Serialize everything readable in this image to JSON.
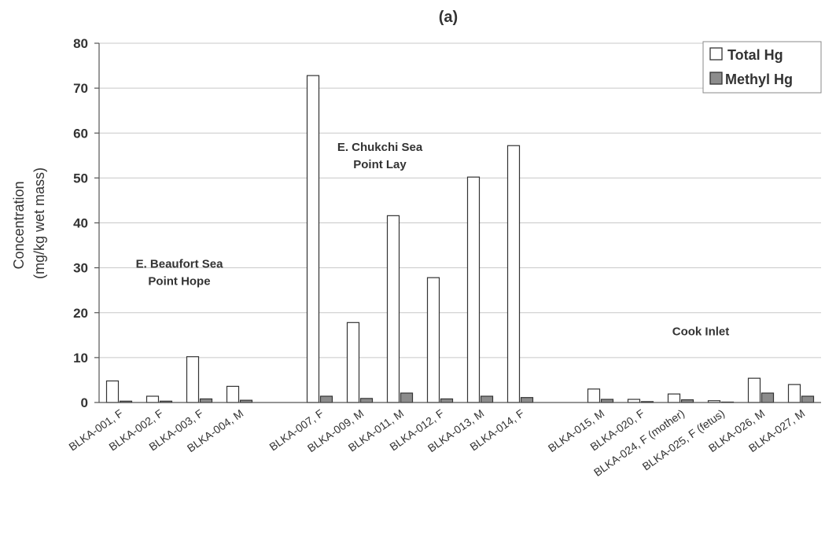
{
  "chart_data": {
    "type": "bar",
    "title": "(a)",
    "ylabel": [
      "Concentration",
      "(mg/kg wet mass)"
    ],
    "ylim": [
      0,
      80
    ],
    "yticks": [
      0,
      10,
      20,
      30,
      40,
      50,
      60,
      70,
      80
    ],
    "grid": true,
    "legend_position": "top-right",
    "colors": {
      "total": "#ffffff",
      "methyl": "#8c8c8c",
      "stroke": "#333333"
    },
    "categories": [
      "BLKA-001, F",
      "BLKA-002, F",
      "BLKA-003, F",
      "BLKA-004, M",
      "",
      "BLKA-007, F",
      "BLKA-009, M",
      "BLKA-011, M",
      "BLKA-012, F",
      "BLKA-013, M",
      "BLKA-014, F",
      "",
      "BLKA-015, M",
      "BLKA-020, F",
      "BLKA-024, F (mother)",
      "BLKA-025, F (fetus)",
      "BLKA-026, M",
      "BLKA-027, M"
    ],
    "series": [
      {
        "name": "Total Hg",
        "values": [
          4.8,
          1.4,
          10.2,
          3.6,
          null,
          72.8,
          17.8,
          41.6,
          27.8,
          50.2,
          57.2,
          null,
          3.0,
          0.7,
          1.9,
          0.4,
          5.4,
          4.0
        ]
      },
      {
        "name": "Methyl Hg",
        "values": [
          0.3,
          0.3,
          0.8,
          0.5,
          null,
          1.4,
          0.9,
          2.1,
          0.8,
          1.4,
          1.1,
          null,
          0.7,
          0.2,
          0.6,
          0.1,
          2.1,
          1.4
        ]
      }
    ],
    "annotations": [
      {
        "lines": [
          "E. Beaufort Sea",
          "Point Hope"
        ],
        "x_index": 1.5,
        "y": 30
      },
      {
        "lines": [
          "E. Chukchi Sea",
          "Point Lay"
        ],
        "x_index": 6.5,
        "y": 56
      },
      {
        "lines": [
          "Cook Inlet"
        ],
        "x_index": 14.5,
        "y": 15
      }
    ]
  }
}
